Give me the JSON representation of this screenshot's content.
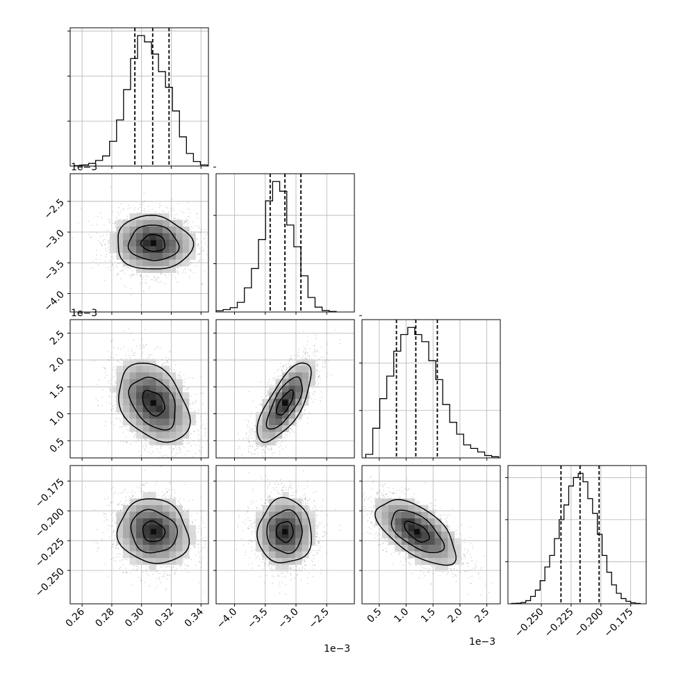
{
  "chart_data": {
    "type": "corner",
    "title": "",
    "dimensions": 4,
    "quantiles": [
      0.16,
      0.5,
      0.84
    ],
    "grid": true,
    "contour_levels": 3,
    "variables": [
      {
        "label": "",
        "range": [
          0.252,
          0.345
        ],
        "ticks": [
          0.26,
          0.28,
          0.3,
          0.32,
          0.34
        ],
        "tick_labels": [
          "0.26",
          "0.28",
          "0.30",
          "0.32",
          "0.34"
        ],
        "offset_text": "",
        "quantile_values": [
          0.2955,
          0.3075,
          0.3185
        ],
        "hist": {
          "edges": [
            0.255,
            0.2597,
            0.2644,
            0.2691,
            0.2738,
            0.2785,
            0.2832,
            0.2879,
            0.2926,
            0.2973,
            0.302,
            0.3067,
            0.3114,
            0.3161,
            0.3208,
            0.3255,
            0.3302,
            0.3349,
            0.3396,
            0.3443
          ],
          "counts": [
            2,
            5,
            12,
            25,
            45,
            110,
            205,
            340,
            478,
            580,
            552,
            498,
            420,
            350,
            245,
            130,
            56,
            20,
            5
          ],
          "yticks": [
            200,
            400,
            600
          ]
        }
      },
      {
        "label": "",
        "range": [
          -0.0043,
          -0.00205
        ],
        "ticks": [
          -0.004,
          -0.0035,
          -0.003,
          -0.0025
        ],
        "tick_labels": [
          "−4.0",
          "−3.5",
          "−3.0",
          "−2.5"
        ],
        "offset_text": "1e−3",
        "quantile_values": [
          -0.00342,
          -0.00318,
          -0.00292
        ],
        "hist": {
          "edges": [
            -0.0043,
            -0.004185,
            -0.00407,
            -0.003955,
            -0.00384,
            -0.003725,
            -0.00361,
            -0.003495,
            -0.00338,
            -0.003265,
            -0.00315,
            -0.003035,
            -0.00292,
            -0.002805,
            -0.00269,
            -0.002575,
            -0.00246,
            -0.002345
          ],
          "counts": [
            5,
            10,
            18,
            40,
            100,
            180,
            300,
            460,
            540,
            500,
            360,
            270,
            150,
            60,
            20,
            6,
            2
          ],
          "yticks": [
            200,
            400,
            600
          ]
        }
      },
      {
        "label": "",
        "range": [
          0.00018,
          0.00275
        ],
        "ticks": [
          0.0005,
          0.001,
          0.0015,
          0.002,
          0.0025
        ],
        "tick_labels": [
          "0.5",
          "1.0",
          "1.5",
          "2.0",
          "2.5"
        ],
        "offset_text": "1e−3",
        "quantile_values": [
          0.00082,
          0.00118,
          0.00158
        ],
        "hist": {
          "edges": [
            0.00025,
            0.00038,
            0.00051,
            0.00064,
            0.00077,
            0.0009,
            0.00103,
            0.00116,
            0.00129,
            0.00142,
            0.00155,
            0.00168,
            0.00181,
            0.00194,
            0.00207,
            0.0022,
            0.00233,
            0.00246,
            0.00259,
            0.00272
          ],
          "counts": [
            15,
            125,
            250,
            345,
            450,
            520,
            550,
            520,
            490,
            410,
            330,
            225,
            150,
            100,
            55,
            40,
            25,
            10,
            5
          ],
          "yticks": [
            200,
            400,
            600
          ]
        }
      },
      {
        "label": "",
        "range": [
          -0.278,
          -0.162
        ],
        "ticks": [
          -0.25,
          -0.225,
          -0.2,
          -0.175
        ],
        "tick_labels": [
          "−0.250",
          "−0.225",
          "−0.200",
          "−0.175"
        ],
        "offset_text": "",
        "quantile_values": [
          -0.2335,
          -0.2175,
          -0.2015
        ],
        "hist": {
          "edges": [
            -0.275,
            -0.271,
            -0.267,
            -0.263,
            -0.259,
            -0.255,
            -0.251,
            -0.247,
            -0.243,
            -0.239,
            -0.235,
            -0.231,
            -0.227,
            -0.223,
            -0.219,
            -0.215,
            -0.211,
            -0.207,
            -0.203,
            -0.199,
            -0.195,
            -0.191,
            -0.187,
            -0.183,
            -0.179,
            -0.175,
            -0.171,
            -0.167
          ],
          "counts": [
            2,
            3,
            6,
            15,
            35,
            65,
            110,
            175,
            230,
            310,
            400,
            470,
            560,
            600,
            620,
            580,
            500,
            430,
            330,
            230,
            150,
            90,
            50,
            25,
            12,
            5,
            2
          ],
          "yticks": [
            200,
            400,
            600
          ]
        }
      }
    ],
    "pairs": [
      {
        "x": 0,
        "y": 1,
        "mean": [
          0.308,
          -0.00318
        ],
        "sd": [
          0.0145,
          0.00025
        ],
        "rho": -0.05,
        "points": 2200
      },
      {
        "x": 0,
        "y": 2,
        "mean": [
          0.308,
          0.0012
        ],
        "sd": [
          0.0135,
          0.00042
        ],
        "rho": -0.35,
        "points": 2200
      },
      {
        "x": 1,
        "y": 2,
        "mean": [
          -0.00318,
          0.0012
        ],
        "sd": [
          0.00025,
          0.00042
        ],
        "rho": 0.72,
        "points": 2200
      },
      {
        "x": 0,
        "y": 3,
        "mean": [
          0.308,
          -0.2175
        ],
        "sd": [
          0.0135,
          0.0155
        ],
        "rho": -0.1,
        "points": 2200
      },
      {
        "x": 1,
        "y": 3,
        "mean": [
          -0.00318,
          -0.2175
        ],
        "sd": [
          0.00025,
          0.0155
        ],
        "rho": 0.0,
        "points": 2200
      },
      {
        "x": 2,
        "y": 3,
        "mean": [
          0.0012,
          -0.2175
        ],
        "sd": [
          0.00042,
          0.0155
        ],
        "rho": -0.6,
        "points": 2200
      }
    ]
  }
}
